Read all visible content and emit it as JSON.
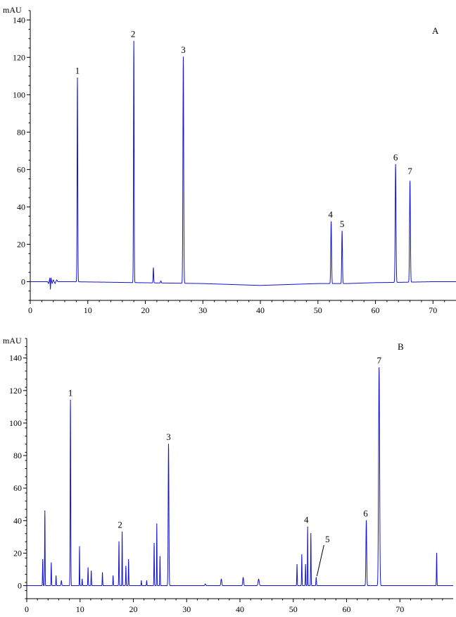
{
  "chart_data": [
    {
      "type": "line",
      "panel_label": "A",
      "ylabel": "mAU",
      "xlim": [
        0,
        74
      ],
      "ylim": [
        -10,
        145
      ],
      "x_ticks": [
        0,
        10,
        20,
        30,
        40,
        50,
        60,
        70
      ],
      "y_ticks": [
        0,
        20,
        40,
        60,
        80,
        100,
        120,
        140
      ],
      "baseline": [
        [
          0,
          0
        ],
        [
          3,
          0
        ],
        [
          3.2,
          -1
        ],
        [
          3.4,
          2
        ],
        [
          3.5,
          -4
        ],
        [
          3.6,
          2
        ],
        [
          3.8,
          -1
        ],
        [
          4,
          1
        ],
        [
          4.3,
          -1
        ],
        [
          4.6,
          1
        ],
        [
          4.8,
          0
        ],
        [
          7,
          0
        ],
        [
          30,
          -1
        ],
        [
          35,
          -1.5
        ],
        [
          40,
          -2
        ],
        [
          45,
          -1.5
        ],
        [
          50,
          -1
        ],
        [
          55,
          -1
        ],
        [
          60,
          -0.5
        ],
        [
          65,
          -0.3
        ],
        [
          70,
          0
        ],
        [
          74,
          0
        ]
      ],
      "peaks": [
        {
          "label": "1",
          "rt": 8.2,
          "height": 109,
          "width": 0.13
        },
        {
          "label": "2",
          "rt": 18.0,
          "height": 129,
          "width": 0.13
        },
        {
          "label": "",
          "rt": 21.4,
          "height": 8,
          "width": 0.12
        },
        {
          "label": "",
          "rt": 22.7,
          "height": 1,
          "width": 0.15
        },
        {
          "label": "3",
          "rt": 26.6,
          "height": 121,
          "width": 0.16
        },
        {
          "label": "4",
          "rt": 52.3,
          "height": 33,
          "width": 0.16
        },
        {
          "label": "5",
          "rt": 54.2,
          "height": 28,
          "width": 0.15
        },
        {
          "label": "6",
          "rt": 63.5,
          "height": 63,
          "width": 0.17
        },
        {
          "label": "7",
          "rt": 66.0,
          "height": 54,
          "width": 0.17
        }
      ]
    },
    {
      "type": "line",
      "panel_label": "B",
      "ylabel": "mAU",
      "xlim": [
        0,
        80
      ],
      "ylim": [
        -8,
        152
      ],
      "x_ticks": [
        0,
        10,
        20,
        30,
        40,
        50,
        60,
        70
      ],
      "y_ticks": [
        0,
        20,
        40,
        60,
        80,
        100,
        120,
        140
      ],
      "baseline": [
        [
          0,
          0
        ],
        [
          2.8,
          0
        ],
        [
          80,
          0
        ]
      ],
      "peaks": [
        {
          "label": "",
          "rt": 3.0,
          "height": 16,
          "width": 0.1
        },
        {
          "label": "",
          "rt": 3.4,
          "height": 46,
          "width": 0.1
        },
        {
          "label": "",
          "rt": 4.6,
          "height": 14,
          "width": 0.1
        },
        {
          "label": "",
          "rt": 5.5,
          "height": 6,
          "width": 0.1
        },
        {
          "label": "",
          "rt": 6.5,
          "height": 3,
          "width": 0.15
        },
        {
          "label": "1",
          "rt": 8.2,
          "height": 114,
          "width": 0.12
        },
        {
          "label": "",
          "rt": 9.9,
          "height": 24,
          "width": 0.08
        },
        {
          "label": "",
          "rt": 10.4,
          "height": 4,
          "width": 0.1
        },
        {
          "label": "",
          "rt": 11.5,
          "height": 11,
          "width": 0.1
        },
        {
          "label": "",
          "rt": 12.1,
          "height": 9,
          "width": 0.1
        },
        {
          "label": "",
          "rt": 14.2,
          "height": 8,
          "width": 0.1
        },
        {
          "label": "",
          "rt": 16.2,
          "height": 6,
          "width": 0.1
        },
        {
          "label": "",
          "rt": 17.3,
          "height": 27,
          "width": 0.1
        },
        {
          "label": "2",
          "rt": 17.9,
          "height": 33,
          "width": 0.09
        },
        {
          "label": "",
          "rt": 18.6,
          "height": 12,
          "width": 0.1
        },
        {
          "label": "",
          "rt": 19.1,
          "height": 16,
          "width": 0.1
        },
        {
          "label": "",
          "rt": 21.5,
          "height": 3,
          "width": 0.1
        },
        {
          "label": "",
          "rt": 22.5,
          "height": 3,
          "width": 0.1
        },
        {
          "label": "",
          "rt": 23.9,
          "height": 26,
          "width": 0.1
        },
        {
          "label": "",
          "rt": 24.4,
          "height": 38,
          "width": 0.09
        },
        {
          "label": "",
          "rt": 25.0,
          "height": 18,
          "width": 0.1
        },
        {
          "label": "3",
          "rt": 26.6,
          "height": 87,
          "width": 0.16
        },
        {
          "label": "",
          "rt": 33.5,
          "height": 1,
          "width": 0.2
        },
        {
          "label": "",
          "rt": 36.5,
          "height": 4,
          "width": 0.2
        },
        {
          "label": "",
          "rt": 40.6,
          "height": 5,
          "width": 0.2
        },
        {
          "label": "",
          "rt": 43.5,
          "height": 4,
          "width": 0.25
        },
        {
          "label": "",
          "rt": 50.7,
          "height": 13,
          "width": 0.1
        },
        {
          "label": "",
          "rt": 51.6,
          "height": 19,
          "width": 0.1
        },
        {
          "label": "",
          "rt": 52.3,
          "height": 13,
          "width": 0.1
        },
        {
          "label": "4",
          "rt": 52.7,
          "height": 36,
          "width": 0.09
        },
        {
          "label": "",
          "rt": 53.3,
          "height": 32,
          "width": 0.1
        },
        {
          "label": "5",
          "rt": 54.3,
          "height": 5,
          "width": 0.12
        },
        {
          "label": "6",
          "rt": 63.7,
          "height": 40,
          "width": 0.17
        },
        {
          "label": "7",
          "rt": 66.1,
          "height": 134,
          "width": 0.23
        },
        {
          "label": "",
          "rt": 76.9,
          "height": 20,
          "width": 0.1
        }
      ]
    }
  ]
}
